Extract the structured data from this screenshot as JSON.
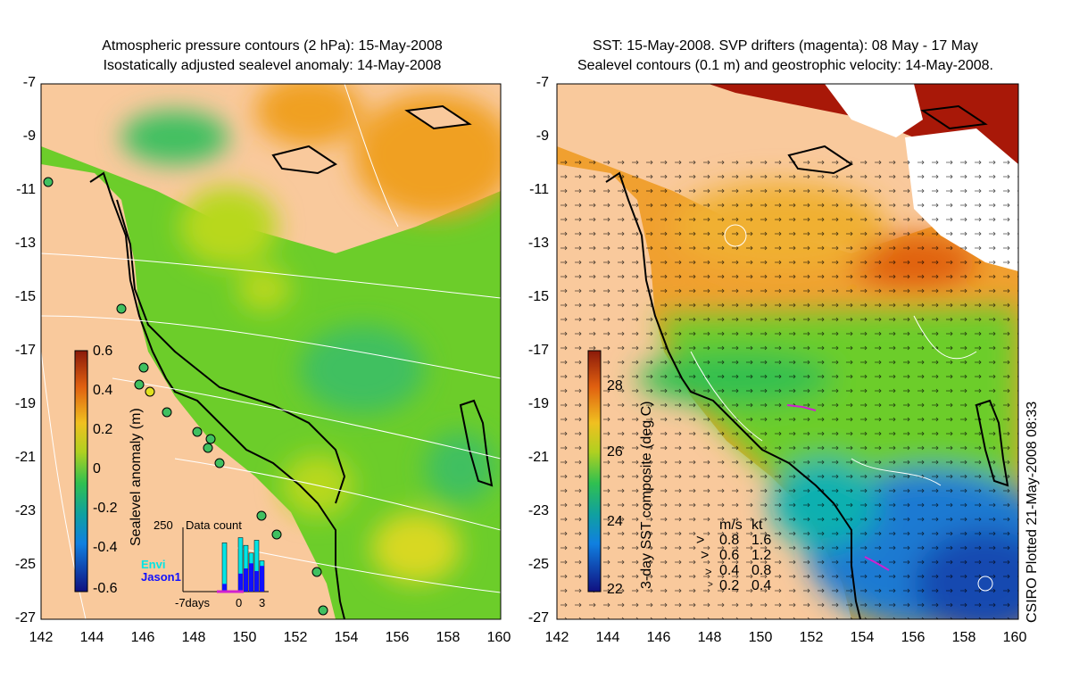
{
  "left_panel": {
    "title_line1": "Atmospheric pressure contours (2 hPa): 15-May-2008",
    "title_line2": "Isostatically adjusted sealevel anomaly: 14-May-2008",
    "colorbar_label": "Sealevel anomaly (m)",
    "colorbar_ticks": [
      "0.6",
      "0.4",
      "0.2",
      "0",
      "-0.2",
      "-0.4",
      "-0.6"
    ],
    "inset": {
      "label": "Data count",
      "max_label": "250",
      "x_labels": [
        "-7days",
        "0",
        "3"
      ],
      "legend": [
        {
          "name": "Envi",
          "color": "#00e5e5"
        },
        {
          "name": "Jason1",
          "color": "#1010ff"
        }
      ],
      "bars_envi": [
        0,
        0,
        0,
        0,
        0,
        0,
        0,
        190,
        0,
        0,
        210,
        180,
        150,
        200,
        120
      ],
      "bars_jason": [
        0,
        0,
        0,
        0,
        0,
        0,
        0,
        30,
        0,
        0,
        70,
        90,
        110,
        80,
        100
      ]
    }
  },
  "right_panel": {
    "title_line1": "SST: 15-May-2008. SVP drifters (magenta): 08 May - 17 May",
    "title_line2": "Sealevel contours (0.1 m) and geostrophic velocity: 14-May-2008.",
    "colorbar_label": "3-day SST composite (deg C)",
    "colorbar_ticks": [
      "28",
      "26",
      "24",
      "22"
    ],
    "velocity_legend": {
      "header_ms": "m/s",
      "header_kt": "kt",
      "rows": [
        {
          "ms": "0.8",
          "kt": "1.6"
        },
        {
          "ms": "0.6",
          "kt": "1.2"
        },
        {
          "ms": "0.4",
          "kt": "0.8"
        },
        {
          "ms": "0.2",
          "kt": "0.4"
        }
      ]
    }
  },
  "y_ticks": [
    "-7",
    "-9",
    "-11",
    "-13",
    "-15",
    "-17",
    "-19",
    "-21",
    "-23",
    "-25",
    "-27"
  ],
  "x_ticks": [
    "142",
    "144",
    "146",
    "148",
    "150",
    "152",
    "154",
    "156",
    "158",
    "160"
  ],
  "credit": "CSIRO Plotted 21-May-2008 08:33",
  "colors": {
    "land": "#f9c99c",
    "ocean_green": "#6ccd2a",
    "anomaly_yellow": "#c8d21e",
    "anomaly_orange": "#f0a020",
    "sst_orange": "#f0a030",
    "sst_red": "#a81808",
    "sst_blue": "#1e7ad2",
    "drifter_magenta": "#d020d0"
  }
}
